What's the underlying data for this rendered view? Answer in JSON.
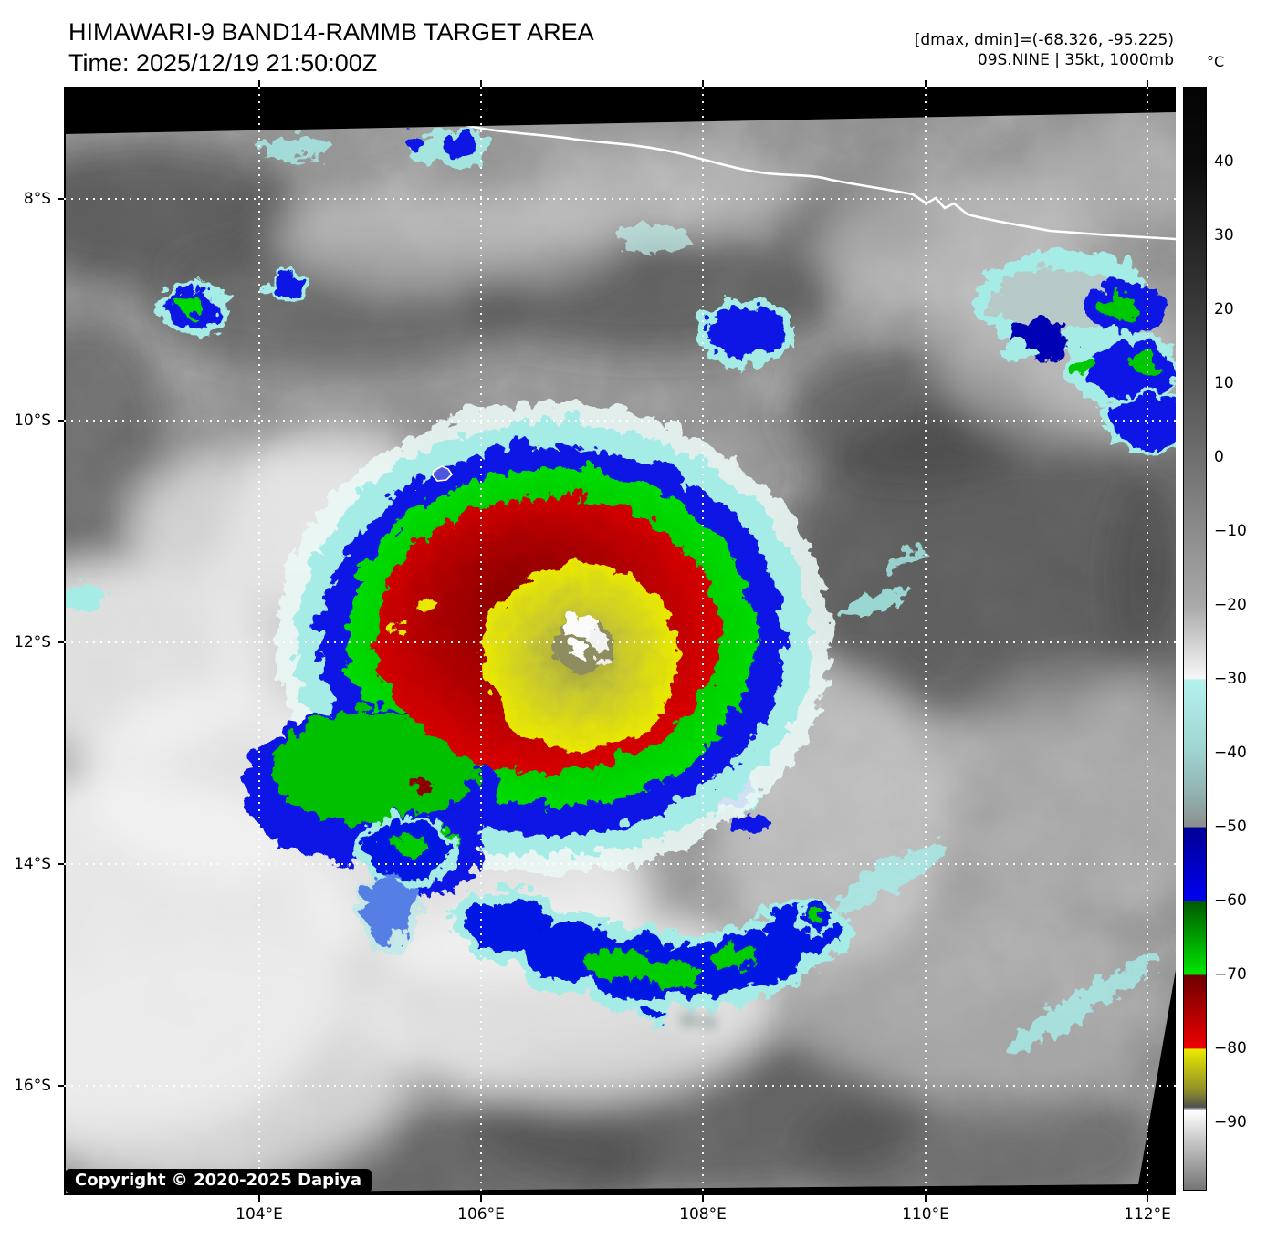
{
  "header": {
    "title": "HIMAWARI-9 BAND14-RAMMB TARGET AREA",
    "time": "Time: 2025/12/19 21:50:00Z",
    "annotation_line1": "[dmax, dmin]=(-68.326, -95.225)",
    "annotation_line2": "09S.NINE | 35kt, 1000mb"
  },
  "colorbar": {
    "unit": "°C",
    "tick_labels": [
      "40",
      "30",
      "20",
      "10",
      "0",
      "−10",
      "−20",
      "−30",
      "−40",
      "−50",
      "−60",
      "−70",
      "−80",
      "−90"
    ],
    "segments": [
      {
        "range": "50 to -30",
        "color_top": "#000000",
        "color_bottom": "#ffffff"
      },
      {
        "range": "-30 to -50",
        "color_top": "#b4f2ee",
        "color_bottom": "#8b908f"
      },
      {
        "range": "-50 to -60",
        "color_top": "#000096",
        "color_bottom": "#0000f0"
      },
      {
        "range": "-60 to -70",
        "color_top": "#005a00",
        "color_bottom": "#00e600"
      },
      {
        "range": "-70 to -80",
        "color_top": "#6e0000",
        "color_bottom": "#ee0000"
      },
      {
        "range": "-80 to -88",
        "color_top": "#e9e900",
        "color_bottom": "#4f4f4f"
      },
      {
        "range": "-88 to -99",
        "color_top": "#ffffff",
        "color_bottom": "#757575"
      }
    ]
  },
  "map": {
    "lat_tick_labels": [
      "8°S",
      "10°S",
      "12°S",
      "14°S",
      "16°S"
    ],
    "lon_tick_labels": [
      "104°E",
      "106°E",
      "108°E",
      "110°E",
      "112°E"
    ],
    "copyright": "Copyright © 2020-2025 Dapiya",
    "features": {
      "storm_center": "tropical cyclone centered near 12°S 106.9°E",
      "coastline": "Java south coast along top right",
      "island": "small island outline near 10.5°S 105.6°E"
    },
    "palette": {
      "fringe_cyan": "#a5ece7",
      "ring_blue": "#0713e4",
      "ring_green": "#00c800",
      "core_red": "#d50000",
      "core_yellow": "#e9e900",
      "eye_gray_olive": "#8d8d5e"
    }
  }
}
